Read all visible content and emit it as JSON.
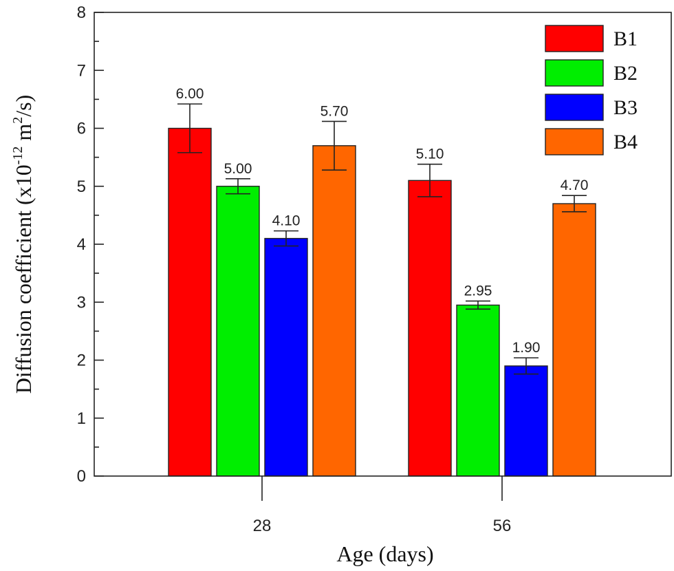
{
  "chart_data": {
    "type": "bar",
    "title": "",
    "xlabel": "Age (days)",
    "ylabel": {
      "prefix": "Diffusion coefficient (x10",
      "exp1": "-12",
      "mid": " m",
      "exp2": "2",
      "suffix": "/s)"
    },
    "ylim": [
      0,
      8
    ],
    "yticks": [
      "0",
      "1",
      "2",
      "3",
      "4",
      "5",
      "6",
      "7",
      "8"
    ],
    "grid": false,
    "legend_position": "top-right",
    "categories": [
      "28",
      "56"
    ],
    "series": [
      {
        "name": "B1",
        "color": "#ff0000",
        "values": [
          6.0,
          5.1
        ],
        "errors": [
          0.42,
          0.28
        ],
        "labels": [
          "6.00",
          "5.10"
        ]
      },
      {
        "name": "B2",
        "color": "#00ee00",
        "values": [
          5.0,
          2.95
        ],
        "errors": [
          0.13,
          0.07
        ],
        "labels": [
          "5.00",
          "2.95"
        ]
      },
      {
        "name": "B3",
        "color": "#0000ff",
        "values": [
          4.1,
          1.9
        ],
        "errors": [
          0.13,
          0.14
        ],
        "labels": [
          "4.10",
          "1.90"
        ]
      },
      {
        "name": "B4",
        "color": "#ff6600",
        "values": [
          5.7,
          4.7
        ],
        "errors": [
          0.42,
          0.14
        ],
        "labels": [
          "5.70",
          "4.70"
        ]
      }
    ]
  }
}
